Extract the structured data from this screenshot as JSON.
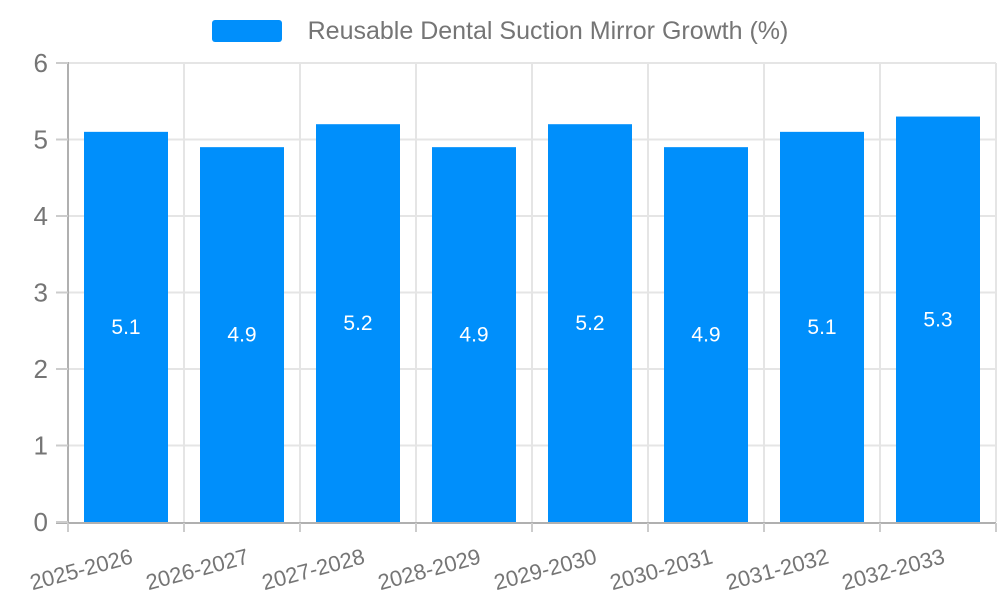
{
  "legend": {
    "label": "Reusable Dental Suction Mirror Growth (%)"
  },
  "colors": {
    "bar": "#008FFB",
    "grid": "#e5e5e5",
    "axis": "#b0b0b0",
    "tick": "#cccccc",
    "axis_label": "#757575",
    "data_label": "#ffffff",
    "background": "#ffffff"
  },
  "chart_data": {
    "type": "bar",
    "title": "Reusable Dental Suction Mirror Growth (%)",
    "categories": [
      "2025-2026",
      "2026-2027",
      "2027-2028",
      "2028-2029",
      "2029-2030",
      "2030-2031",
      "2031-2032",
      "2032-2033"
    ],
    "values": [
      5.1,
      4.9,
      5.2,
      4.9,
      5.2,
      4.9,
      5.1,
      5.3
    ],
    "xlabel": "",
    "ylabel": "",
    "ylim": [
      0,
      6
    ],
    "yticks": [
      0,
      1,
      2,
      3,
      4,
      5,
      6
    ],
    "grid": true,
    "legend_position": "top",
    "data_labels": true,
    "x_label_rotation": -15
  }
}
